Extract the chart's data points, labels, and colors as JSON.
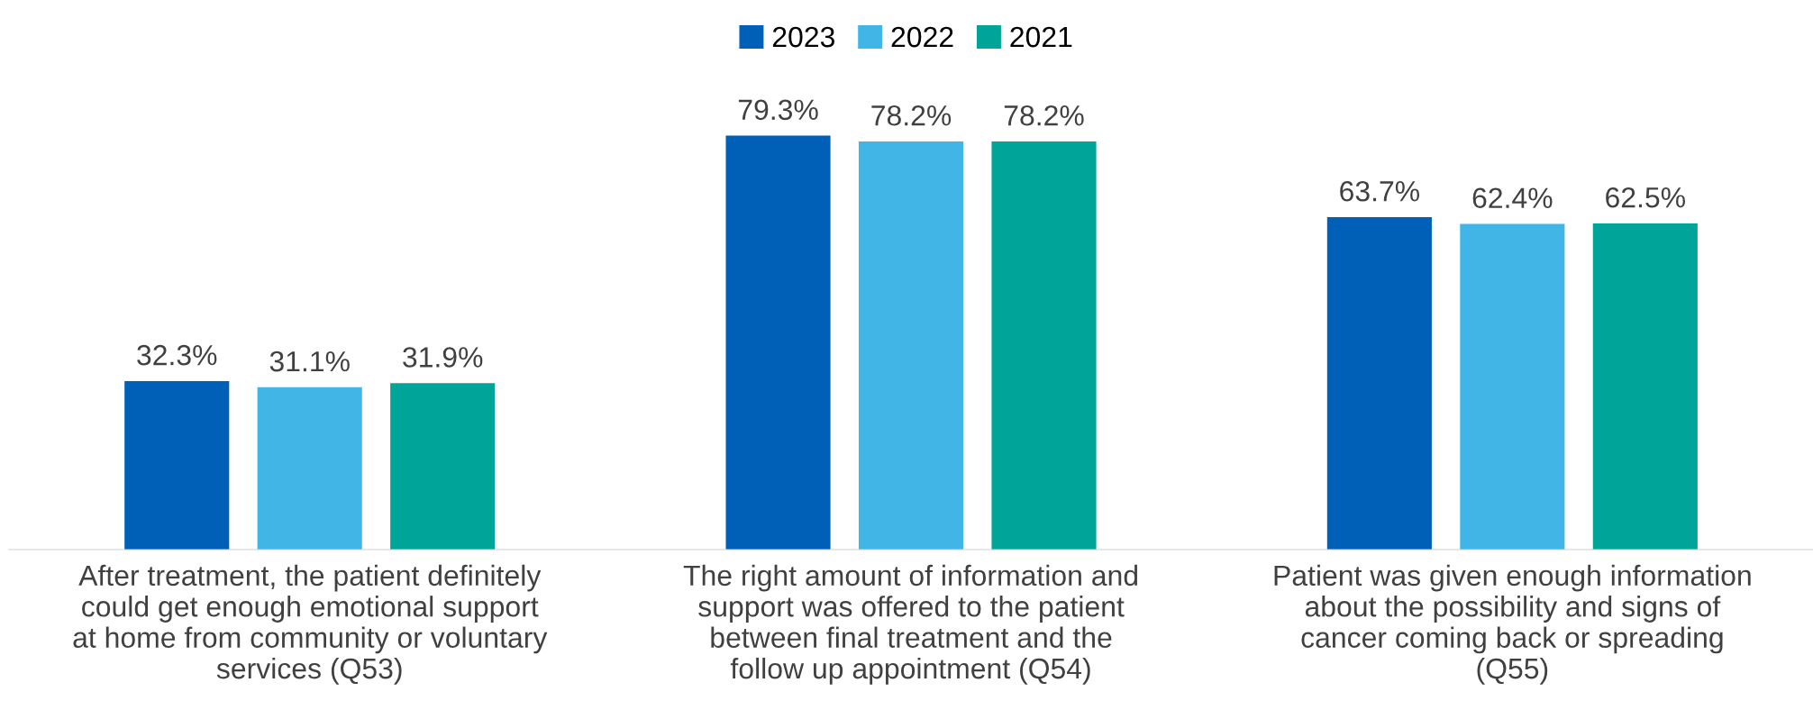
{
  "chart_data": {
    "type": "bar",
    "categories": [
      "After treatment, the patient definitely\ncould get enough emotional support\nat home from community or voluntary\nservices (Q53)",
      "The right amount of information and\nsupport was offered to the patient\nbetween final treatment and the\nfollow up appointment (Q54)",
      "Patient was given enough information\nabout the possibility and signs of\ncancer coming back or spreading\n(Q55)"
    ],
    "series": [
      {
        "name": "2023",
        "color": "#0060b8",
        "values": [
          32.3,
          79.3,
          63.7
        ],
        "value_labels": [
          "32.3%",
          "79.3%",
          "63.7%"
        ]
      },
      {
        "name": "2022",
        "color": "#41b6e6",
        "values": [
          31.1,
          78.2,
          62.4
        ],
        "value_labels": [
          "31.1%",
          "78.2%",
          "62.4%"
        ]
      },
      {
        "name": "2021",
        "color": "#00a499",
        "values": [
          31.9,
          78.2,
          62.5
        ],
        "value_labels": [
          "31.9%",
          "78.2%",
          "62.5%"
        ]
      }
    ],
    "legend": "top",
    "grid": false
  }
}
